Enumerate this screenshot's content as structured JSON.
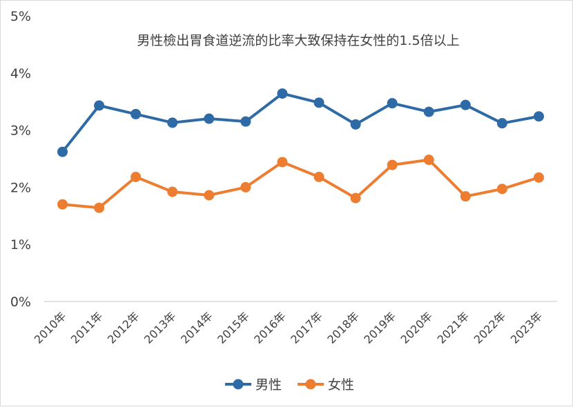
{
  "chart_data": {
    "type": "line",
    "title": "男性檢出胃食道逆流的比率大致保持在女性的1.5倍以上",
    "categories": [
      "2010年",
      "2011年",
      "2012年",
      "2013年",
      "2014年",
      "2015年",
      "2016年",
      "2017年",
      "2018年",
      "2019年",
      "2020年",
      "2021年",
      "2022年",
      "2023年"
    ],
    "y_ticks": [
      "0%",
      "1%",
      "2%",
      "3%",
      "4%",
      "5%"
    ],
    "ylim": [
      0,
      5
    ],
    "grid": false,
    "legend_position": "bottom",
    "series": [
      {
        "name": "男性",
        "color": "#2e6aa6",
        "values": [
          2.62,
          3.43,
          3.28,
          3.13,
          3.2,
          3.15,
          3.64,
          3.48,
          3.1,
          3.47,
          3.32,
          3.44,
          3.12,
          3.24
        ]
      },
      {
        "name": "女性",
        "color": "#ed7d31",
        "values": [
          1.7,
          1.64,
          2.18,
          1.92,
          1.86,
          2.0,
          2.44,
          2.18,
          1.81,
          2.39,
          2.48,
          1.84,
          1.97,
          2.17
        ]
      }
    ]
  }
}
